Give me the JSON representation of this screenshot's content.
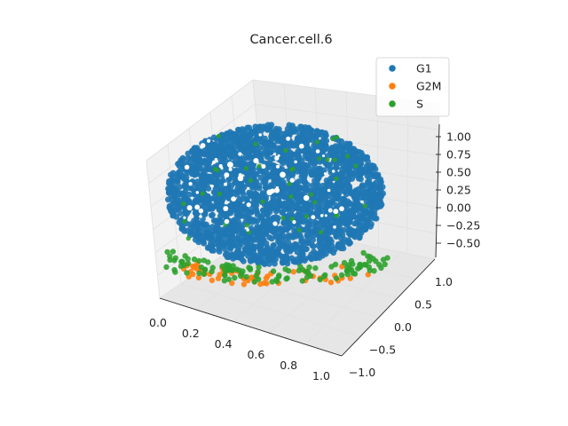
{
  "chart_data": {
    "type": "scatter",
    "projection": "3d",
    "title": "Cancer.cell.6",
    "xlim": [
      0.0,
      1.0
    ],
    "ylim": [
      -1.0,
      1.0
    ],
    "zlim": [
      -0.6,
      1.05
    ],
    "x_ticks": [
      "0.0",
      "0.2",
      "0.4",
      "0.6",
      "0.8",
      "1.0"
    ],
    "y_ticks": [
      "1.0",
      "0.5",
      "0.0",
      "−0.5",
      "−1.0"
    ],
    "z_ticks": [
      "1.00",
      "0.75",
      "0.50",
      "0.25",
      "0.00",
      "−0.25",
      "−0.50"
    ],
    "grid": true,
    "legend_position": "top-right",
    "series": [
      {
        "name": "G1",
        "color": "#1f77b4"
      },
      {
        "name": "G2M",
        "color": "#ff7f0e"
      },
      {
        "name": "S",
        "color": "#2ca02c"
      }
    ]
  }
}
